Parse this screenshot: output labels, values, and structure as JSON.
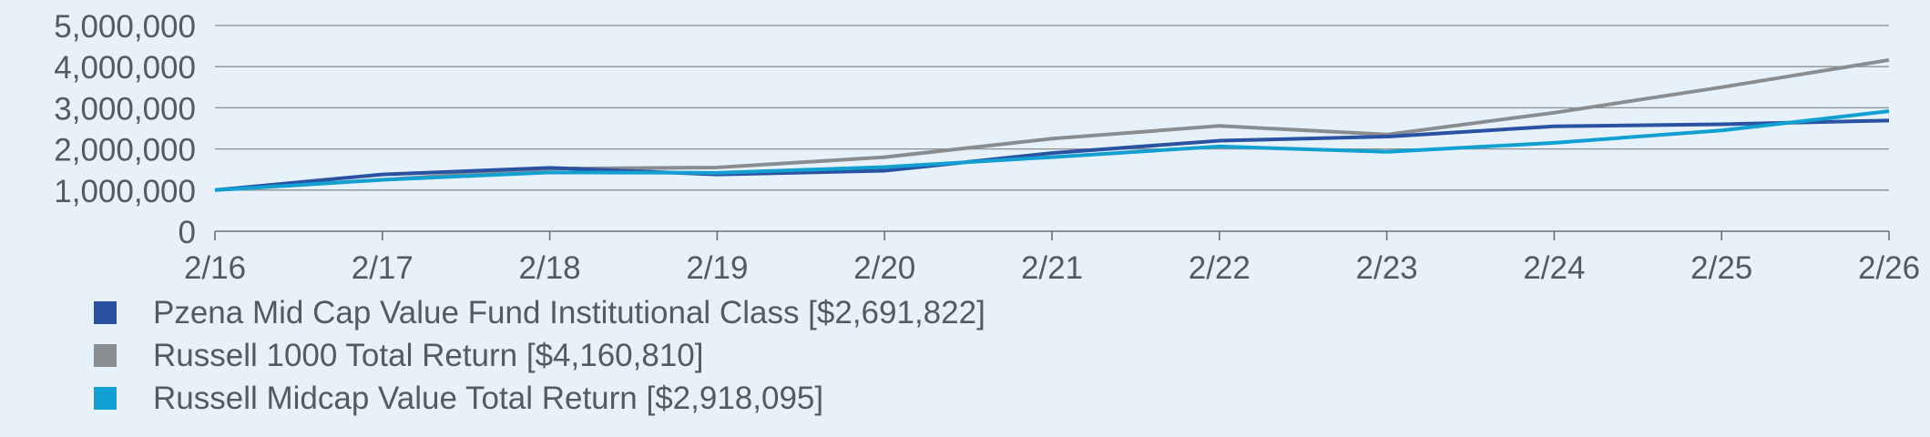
{
  "chart_data": {
    "type": "line",
    "x": [
      "2/16",
      "2/17",
      "2/18",
      "2/19",
      "2/20",
      "2/21",
      "2/22",
      "2/23",
      "2/24",
      "2/25",
      "2/26"
    ],
    "ylim": [
      0,
      5000000
    ],
    "y_ticks": [
      0,
      1000000,
      2000000,
      3000000,
      4000000,
      5000000
    ],
    "y_tick_labels": [
      "0",
      "1,000,000",
      "2,000,000",
      "3,000,000",
      "4,000,000",
      "5,000,000"
    ],
    "grid": true,
    "legend_position": "bottom-left",
    "series": [
      {
        "name": "Pzena Mid Cap Value Fund Institutional Class [$2,691,822]",
        "color": "#2a52a3",
        "values": [
          1000000,
          1380000,
          1540000,
          1380000,
          1470000,
          1900000,
          2200000,
          2300000,
          2550000,
          2600000,
          2691822
        ]
      },
      {
        "name": "Russell 1000 Total Return [$4,160,810]",
        "color": "#8a8d90",
        "values": [
          1000000,
          1250000,
          1520000,
          1550000,
          1800000,
          2250000,
          2560000,
          2350000,
          2880000,
          3500000,
          4160810
        ]
      },
      {
        "name": "Russell Midcap Value Total Return [$2,918,095]",
        "color": "#12a0d2",
        "values": [
          1000000,
          1250000,
          1430000,
          1420000,
          1560000,
          1800000,
          2060000,
          1930000,
          2150000,
          2450000,
          2918095
        ]
      }
    ]
  }
}
